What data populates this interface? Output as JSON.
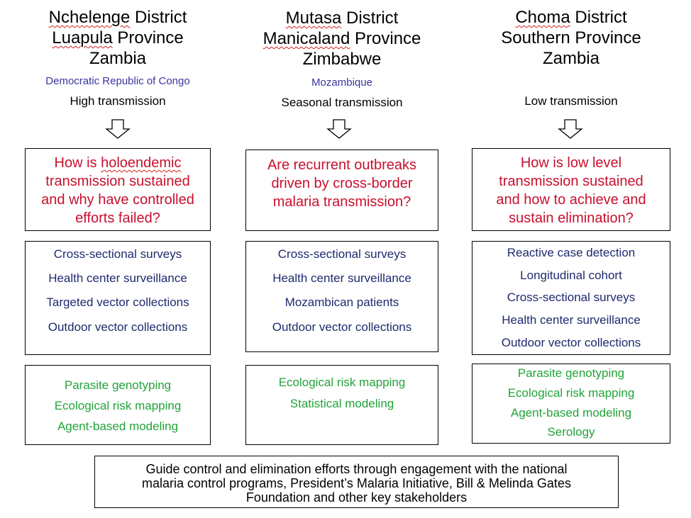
{
  "columns": [
    {
      "district": "Nchelenge District",
      "province": "Luapula Province",
      "country": "Zambia",
      "neighbor": "Democratic Republic of Congo",
      "transmission": "High transmission",
      "question": [
        "How is holoendemic",
        "transmission sustained",
        "and why have controlled",
        "efforts failed?"
      ],
      "methods": [
        "Cross-sectional surveys",
        "Health center surveillance",
        "Targeted vector collections",
        "Outdoor vector collections"
      ],
      "analyses": [
        "Parasite genotyping",
        "Ecological risk mapping",
        "Agent-based modeling"
      ]
    },
    {
      "district": "Mutasa District",
      "province": "Manicaland Province",
      "country": "Zimbabwe",
      "neighbor": "Mozambique",
      "transmission": "Seasonal transmission",
      "question": [
        "Are recurrent outbreaks",
        "driven by cross-border",
        "malaria transmission?"
      ],
      "methods": [
        "Cross-sectional surveys",
        "Health center surveillance",
        "Mozambican patients",
        "Outdoor vector collections"
      ],
      "analyses": [
        "Ecological risk mapping",
        "Statistical modeling"
      ]
    },
    {
      "district": "Choma District",
      "province": "Southern Province",
      "country": "Zambia",
      "transmission": "Low transmission",
      "question": [
        "How is low level",
        "transmission sustained",
        "and how to achieve and",
        "sustain elimination?"
      ],
      "methods": [
        "Reactive case detection",
        "Longitudinal cohort",
        "Cross-sectional surveys",
        "Health center surveillance",
        "Outdoor vector collections"
      ],
      "analyses": [
        "Parasite genotyping",
        "Ecological risk mapping",
        "Agent-based modeling",
        "Serology"
      ]
    }
  ],
  "footer": [
    "Guide control and elimination efforts through engagement with the national",
    "malaria control programs, President’s Malaria Initiative, Bill & Melinda Gates",
    "Foundation and other key stakeholders"
  ]
}
